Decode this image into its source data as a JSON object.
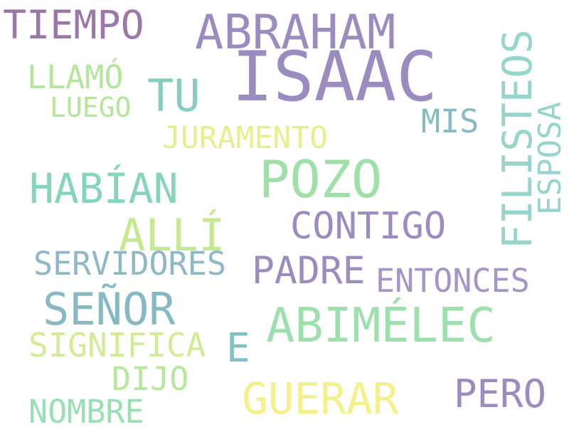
{
  "words": [
    {
      "text": "ISAAC",
      "color": "#9b8bbf"
    },
    {
      "text": "ABRAHAM",
      "color": "#9b8bbf"
    },
    {
      "text": "TIEMPO",
      "color": "#9a78a8"
    },
    {
      "text": "TU",
      "color": "#86cdc0"
    },
    {
      "text": "LLAMÓ",
      "color": "#b4e59a"
    },
    {
      "text": "LUEGO",
      "color": "#b4e59a"
    },
    {
      "text": "FILISTEOS",
      "color": "#96d5cc"
    },
    {
      "text": "ESPOSA",
      "color": "#96d5cc"
    },
    {
      "text": "MIS",
      "color": "#86bcc1"
    },
    {
      "text": "JURAMENTO",
      "color": "#e6ef8e"
    },
    {
      "text": "POZO",
      "color": "#9ee0a8"
    },
    {
      "text": "HABÍAN",
      "color": "#86d4bb"
    },
    {
      "text": "CONTIGO",
      "color": "#9b8bbf"
    },
    {
      "text": "ALLÍ",
      "color": "#c6e88e"
    },
    {
      "text": "SERVIDORES",
      "color": "#8eb8c4"
    },
    {
      "text": "PADRE",
      "color": "#9b8bbf"
    },
    {
      "text": "ENTONCES",
      "color": "#a594c8"
    },
    {
      "text": "SEÑOR",
      "color": "#86b9c2"
    },
    {
      "text": "ABIMÉLEC",
      "color": "#9ee0ad"
    },
    {
      "text": "E",
      "color": "#7ec2c4"
    },
    {
      "text": "SIGNIFICA",
      "color": "#d2ec96"
    },
    {
      "text": "DIJO",
      "color": "#b8e69a"
    },
    {
      "text": "GUERAR",
      "color": "#f4f08a"
    },
    {
      "text": "PERO",
      "color": "#9b8bbf"
    },
    {
      "text": "NOMBRE",
      "color": "#98e0b4"
    }
  ]
}
